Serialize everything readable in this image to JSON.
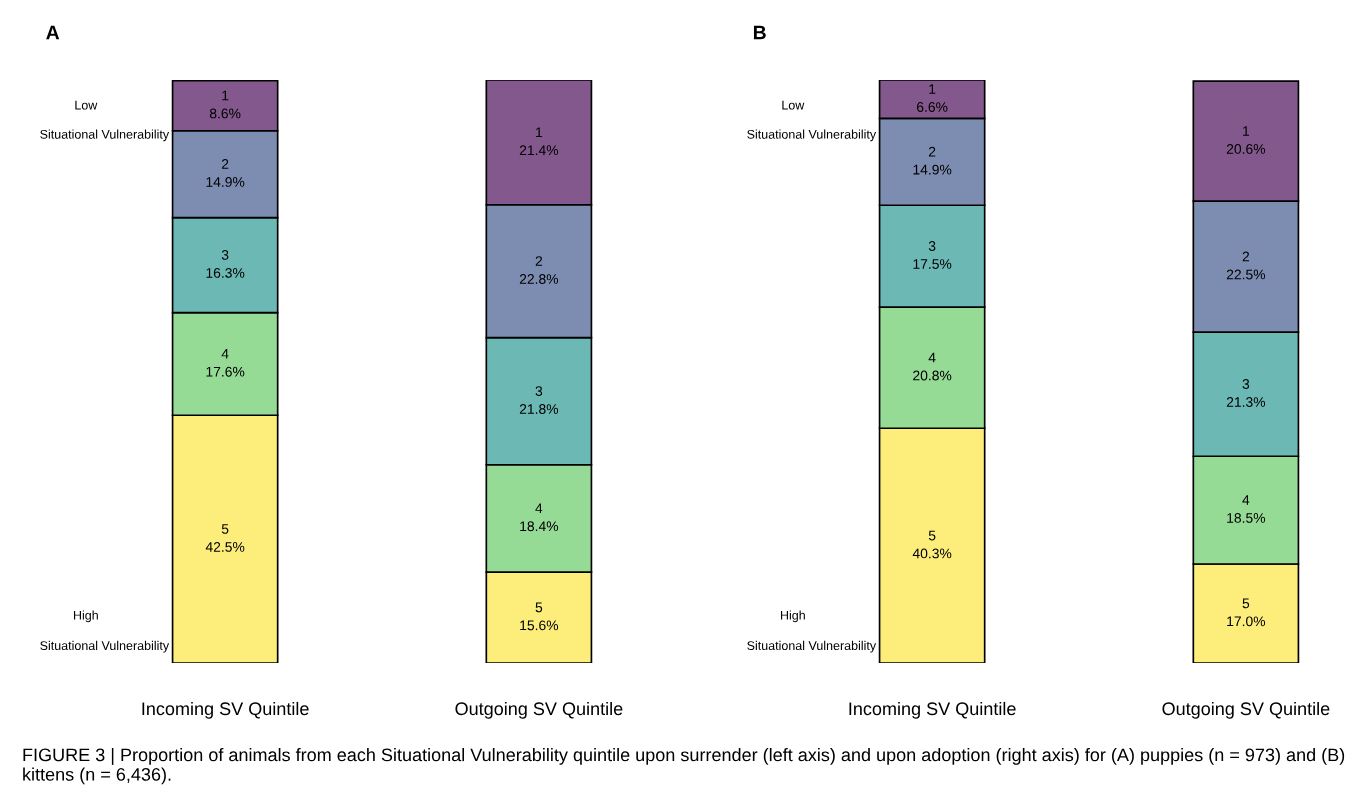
{
  "chart_data": [
    {
      "type": "bar",
      "title": "A",
      "stacked": true,
      "tick_labels": "x",
      "grid": false,
      "legend": false,
      "categories": [
        "Incoming SV Quintile",
        "Outgoing SV Quintile"
      ],
      "series": [
        {
          "name": "5",
          "color": "#fdee7c",
          "values": [
            42.5,
            15.6
          ],
          "value_labels": [
            "42.5%",
            "15.6%"
          ]
        },
        {
          "name": "4",
          "color": "#95db95",
          "values": [
            17.6,
            18.4
          ],
          "value_labels": [
            "17.6%",
            "18.4%"
          ]
        },
        {
          "name": "3",
          "color": "#6cb8b5",
          "values": [
            16.3,
            21.8
          ],
          "value_labels": [
            "16.3%",
            "21.8%"
          ]
        },
        {
          "name": "2",
          "color": "#7c8db1",
          "values": [
            14.9,
            22.8
          ],
          "value_labels": [
            "14.9%",
            "22.8%"
          ]
        },
        {
          "name": "1",
          "color": "#83588c",
          "values": [
            8.6,
            21.4
          ],
          "value_labels": [
            "8.6%",
            "21.4%"
          ]
        }
      ],
      "annotations": [
        "Low",
        "Situational Vulnerability",
        "High",
        "Situational Vulnerability",
        "FIGURE 3 | Proportion of animals from each Situational Vulnerability quintile upon surrender (left axis) and upon adoption (right axis) for (A) puppies (n = 973) and (B) kittens (n = 6,436)."
      ]
    },
    {
      "type": "bar",
      "title": "B",
      "stacked": true,
      "tick_labels": "x",
      "grid": false,
      "legend": false,
      "categories": [
        "Incoming SV Quintile",
        "Outgoing SV Quintile"
      ],
      "series": [
        {
          "name": "5",
          "color": "#fdee7c",
          "values": [
            40.3,
            17.0
          ],
          "value_labels": [
            "40.3%",
            "17.0%"
          ]
        },
        {
          "name": "4",
          "color": "#95db95",
          "values": [
            20.8,
            18.5
          ],
          "value_labels": [
            "20.8%",
            "18.5%"
          ]
        },
        {
          "name": "3",
          "color": "#6cb8b5",
          "values": [
            17.5,
            21.3
          ],
          "value_labels": [
            "17.5%",
            "21.3%"
          ]
        },
        {
          "name": "2",
          "color": "#7c8db1",
          "values": [
            14.9,
            22.5
          ],
          "value_labels": [
            "14.9%",
            "22.5%"
          ]
        },
        {
          "name": "1",
          "color": "#83588c",
          "values": [
            6.6,
            20.6
          ],
          "value_labels": [
            "6.6%",
            "20.6%"
          ]
        }
      ],
      "annotations": [
        "Low",
        "Situational Vulnerability",
        "High",
        "Situational Vulnerability"
      ]
    }
  ]
}
